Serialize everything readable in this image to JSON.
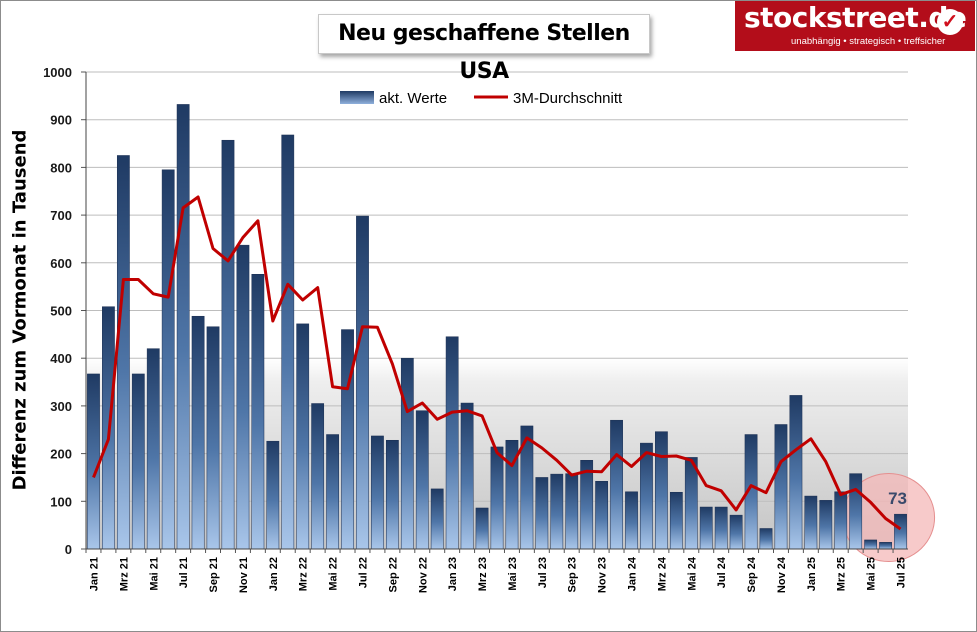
{
  "header": {
    "title": "Neu geschaffene Stellen USA",
    "logo_name": "stockstreet.de",
    "logo_tagline": "unabhängig • strategisch • treffsicher"
  },
  "colors": {
    "bar_top": "#1f3a63",
    "bar_bottom": "#a9c6ea",
    "line": "#c00000",
    "logo_bg": "#b30d1a",
    "highlight_fill": "#f4b8b8"
  },
  "chart_data": {
    "type": "bar",
    "title": "Neu geschaffene Stellen USA",
    "xlabel": "",
    "ylabel": "Differenz zum Vormonat in Tausend",
    "ylim": [
      0,
      1000
    ],
    "yticks": [
      "0",
      "100",
      "200",
      "300",
      "400",
      "500",
      "600",
      "700",
      "800",
      "900",
      "1000"
    ],
    "grid": true,
    "legend_position": "top-center",
    "categories": [
      "Jan 21",
      "Feb 21",
      "Mrz 21",
      "Apr 21",
      "Mai 21",
      "Jun 21",
      "Jul 21",
      "Aug 21",
      "Sep 21",
      "Okt 21",
      "Nov 21",
      "Dez 21",
      "Jan 22",
      "Feb 22",
      "Mrz 22",
      "Apr 22",
      "Mai 22",
      "Jun 22",
      "Jul 22",
      "Aug 22",
      "Sep 22",
      "Okt 22",
      "Nov 22",
      "Dez 22",
      "Jan 23",
      "Feb 23",
      "Mrz 23",
      "Apr 23",
      "Mai 23",
      "Jun 23",
      "Jul 23",
      "Aug 23",
      "Sep 23",
      "Okt 23",
      "Nov 23",
      "Dez 23",
      "Jan 24",
      "Feb 24",
      "Mrz 24",
      "Apr 24",
      "Mai 24",
      "Jun 24",
      "Jul 24",
      "Aug 24",
      "Sep 24",
      "Okt 24",
      "Nov 24",
      "Dez 24",
      "Jan 25",
      "Feb 25",
      "Mrz 25",
      "Apr 25",
      "Mai 25",
      "Jun 25",
      "Jul 25"
    ],
    "tick_labels": [
      "Jan 21",
      "",
      "Mrz 21",
      "",
      "Mai 21",
      "",
      "Jul 21",
      "",
      "Sep 21",
      "",
      "Nov 21",
      "",
      "Jan 22",
      "",
      "Mrz 22",
      "",
      "Mai 22",
      "",
      "Jul 22",
      "",
      "Sep 22",
      "",
      "Nov 22",
      "",
      "Jan 23",
      "",
      "Mrz 23",
      "",
      "Mai 23",
      "",
      "Jul 23",
      "",
      "Sep 23",
      "",
      "Nov 23",
      "",
      "Jan 24",
      "",
      "Mrz 24",
      "",
      "Mai 24",
      "",
      "Jul 24",
      "",
      "Sep 24",
      "",
      "Nov 24",
      "",
      "Jan 25",
      "",
      "Mrz 25",
      "",
      "Mai 25",
      "",
      "Jul 25"
    ],
    "series": [
      {
        "name": "akt. Werte",
        "type": "bar",
        "values": [
          367,
          508,
          825,
          367,
          420,
          795,
          932,
          488,
          466,
          857,
          637,
          576,
          226,
          868,
          472,
          305,
          240,
          460,
          698,
          237,
          228,
          400,
          290,
          126,
          445,
          306,
          86,
          214,
          228,
          258,
          150,
          157,
          158,
          186,
          142,
          270,
          120,
          222,
          246,
          119,
          192,
          88,
          88,
          71,
          240,
          43,
          261,
          322,
          111,
          102,
          120,
          158,
          19,
          14,
          73
        ]
      },
      {
        "name": "3M-Durchschnitt",
        "type": "line",
        "values": [
          150,
          230,
          565,
          565,
          535,
          528,
          715,
          738,
          630,
          604,
          653,
          688,
          478,
          555,
          522,
          548,
          340,
          336,
          466,
          465,
          388,
          288,
          306,
          272,
          287,
          290,
          279,
          202,
          175,
          233,
          212,
          186,
          155,
          163,
          162,
          198,
          173,
          202,
          194,
          195,
          186,
          133,
          122,
          82,
          133,
          118,
          183,
          208,
          231,
          183,
          114,
          125,
          98,
          64,
          42
        ]
      }
    ],
    "annotation": {
      "value": "73",
      "category": "Jul 25"
    }
  }
}
